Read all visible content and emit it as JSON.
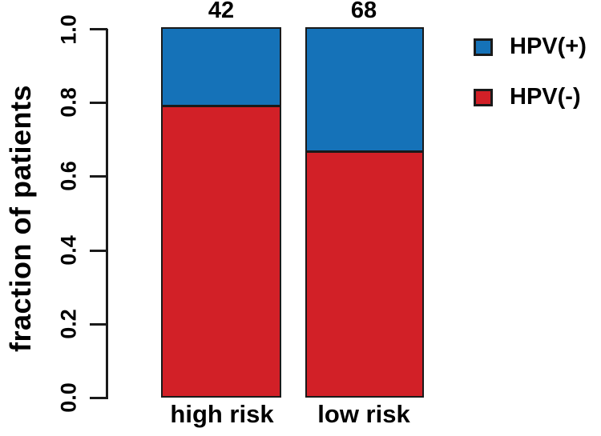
{
  "chart_data": {
    "type": "bar",
    "stacked": true,
    "title": "",
    "xlabel": "",
    "ylabel": "fraction of patients",
    "categories": [
      "high risk",
      "low risk"
    ],
    "bar_totals": [
      "42",
      "68"
    ],
    "series": [
      {
        "name": "HPV(+)",
        "color": "#1572B8",
        "values": [
          0.214,
          0.338
        ]
      },
      {
        "name": "HPV(-)",
        "color": "#D22027",
        "values": [
          0.786,
          0.662
        ]
      }
    ],
    "yticks": [
      "0.0",
      "0.2",
      "0.4",
      "0.6",
      "0.8",
      "1.0"
    ],
    "ylim": [
      0.0,
      1.0
    ],
    "grid": false,
    "legend_position": "top-right",
    "axis_color": "#1a1a1a",
    "background_color": "#ffffff"
  }
}
